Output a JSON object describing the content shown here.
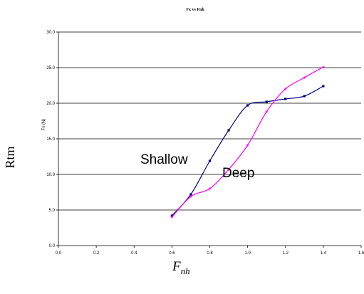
{
  "chart_data": {
    "type": "line",
    "title": "Fx vs Fnh",
    "ylabel": "Fx (N)",
    "xlim": [
      0.0,
      1.6
    ],
    "ylim": [
      0.0,
      30.0
    ],
    "x_ticks": [
      "0.0",
      "0.2",
      "0.4",
      "0.6",
      "0.8",
      "1.0",
      "1.2",
      "1.4",
      "1.6"
    ],
    "y_ticks": [
      "0.0",
      "5.0",
      "10.0",
      "15.0",
      "20.0",
      "25.0",
      "30.0"
    ],
    "grid": "horizontal",
    "series": [
      {
        "color": "#000080",
        "x": [
          0.6,
          0.7,
          0.8,
          0.9,
          1.0,
          1.1,
          1.2,
          1.3,
          1.4
        ],
        "y": [
          4.2,
          7.2,
          11.9,
          16.2,
          19.7,
          20.2,
          20.6,
          21.0,
          22.4
        ]
      },
      {
        "color": "#ff00ff",
        "x": [
          0.6,
          0.7,
          0.8,
          0.9,
          1.0,
          1.1,
          1.2,
          1.3,
          1.4
        ],
        "y": [
          4.0,
          6.9,
          8.0,
          10.7,
          14.1,
          18.8,
          22.0,
          23.6,
          25.1
        ]
      }
    ],
    "annotations": [
      "Shallow",
      "Deep"
    ]
  },
  "outer": {
    "left_label": "Rtm",
    "bottom_label_main": "F",
    "bottom_label_sub": "nh"
  }
}
